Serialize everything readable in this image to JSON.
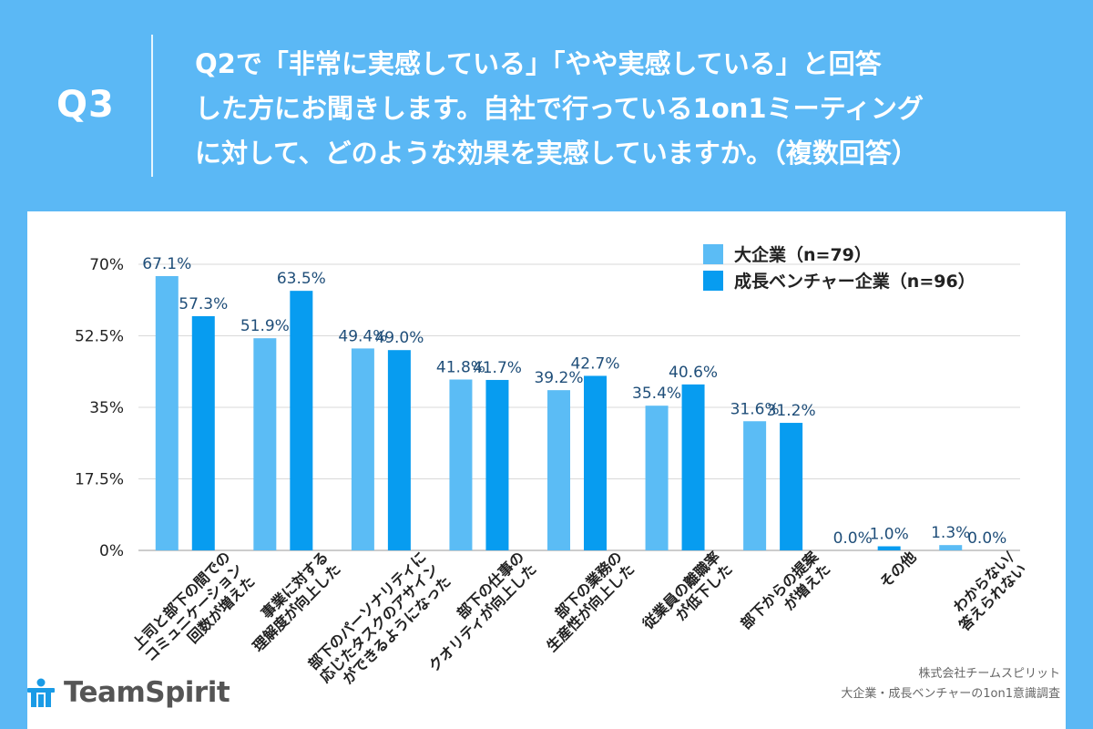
{
  "header": {
    "q_label": "Q3",
    "question_lines": [
      "Q2で「非常に実感している」「やや実感している」と回答",
      "した方にお聞きします。自社で行っている1on1ミーティング",
      "に対して、どのような効果を実感していますか。（複数回答）"
    ]
  },
  "colors": {
    "header_bg": "#5bb8f5",
    "series_large": "#5bbcf5",
    "series_venture": "#079cf0",
    "value_label": "#1f4e79"
  },
  "chart_data": {
    "type": "bar",
    "title": "",
    "ylim": [
      0,
      70
    ],
    "yticks": [
      0,
      17.5,
      35,
      52.5,
      70
    ],
    "ytick_labels": [
      "0%",
      "17.5%",
      "35%",
      "52.5%",
      "70%"
    ],
    "categories": [
      [
        "上司と部下の間での",
        "コミュニケーション",
        "回数が増えた"
      ],
      [
        "事業に対する",
        "理解度が向上した"
      ],
      [
        "部下のパーソナリティに",
        "応じたタスクのアサイン",
        "ができるようになった"
      ],
      [
        "部下の仕事の",
        "クオリティが向上した"
      ],
      [
        "部下の業務の",
        "生産性が向上した"
      ],
      [
        "従業員の離職率",
        "が低下した"
      ],
      [
        "部下からの提案",
        "が増えた"
      ],
      [
        "その他"
      ],
      [
        "わからない/",
        "答えられない"
      ]
    ],
    "series": [
      {
        "name": "大企業（n=79）",
        "values": [
          67.1,
          51.9,
          49.4,
          41.8,
          39.2,
          35.4,
          31.6,
          0.0,
          1.3
        ]
      },
      {
        "name": "成長ベンチャー企業（n=96）",
        "values": [
          57.3,
          63.5,
          49.0,
          41.7,
          42.7,
          40.6,
          31.2,
          1.0,
          0.0
        ]
      }
    ],
    "legend_position": "top-right"
  },
  "legend": {
    "large": "大企業（n=79）",
    "venture": "成長ベンチャー企業（n=96）"
  },
  "logo": {
    "text": "TeamSpirit",
    "icon": "teamspirit-logo-icon"
  },
  "credit": {
    "line1": "株式会社チームスピリット",
    "line2": "大企業・成長ベンチャーの1on1意識調査"
  }
}
